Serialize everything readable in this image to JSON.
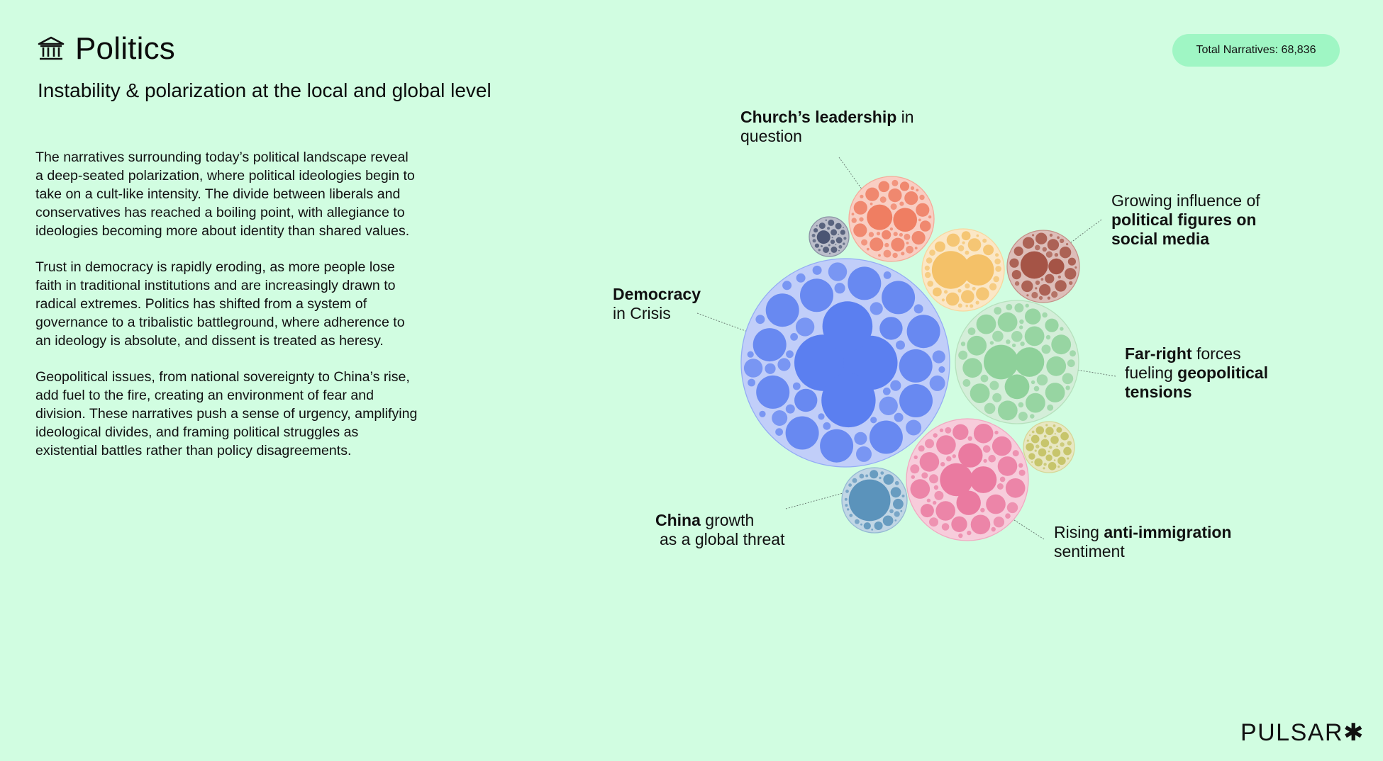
{
  "header": {
    "title": "Politics",
    "icon": "institution-icon"
  },
  "subtitle": "Instability & polarization at the local and global level",
  "badge": "Total Narratives: 68,836",
  "body": {
    "p1": "The narratives surrounding today’s political landscape reveal a deep-seated polarization, where political ideologies begin to take on a cult-like intensity. The divide between liberals and conservatives has reached a boiling point, with allegiance to ideologies becoming more about identity than shared values.",
    "p2": "Trust in democracy is rapidly eroding, as more people lose faith in traditional institutions and are increasingly drawn to radical extremes. Politics has shifted from a system of governance to a tribalistic battleground, where adherence to an ideology is absolute, and dissent is treated as heresy.",
    "p3": "Geopolitical issues, from national sovereignty to China’s rise, add fuel to the fire, creating an environment of fear and division. These narratives push a sense of urgency, amplifying ideological divides, and framing political struggles as existential battles rather than policy disagreements."
  },
  "labels": {
    "church": {
      "bold": "Church’s leadership",
      "rest1": " in",
      "line2": "question"
    },
    "growing": {
      "plain": "Growing influence of",
      "bold2": "political figures on",
      "bold3": "social media"
    },
    "democracy": {
      "bold": "Democracy",
      "line2": "in Crisis"
    },
    "farright": {
      "bold": "Far-right",
      "rest1": " forces",
      "line2a": "fueling ",
      "bold2": "geopolitical",
      "bold3": "tensions"
    },
    "china": {
      "bold": "China",
      "rest1": " growth",
      "line2": "as a global threat"
    },
    "immigration": {
      "plain": "Rising ",
      "bold": "anti-immigration",
      "line2": "sentiment"
    }
  },
  "colors": {
    "background": "#d1fde1",
    "badge": "#9ff6c4",
    "democracy": "#5b7ff0",
    "church": "#ef7e62",
    "social": "#a55446",
    "yellow": "#f4c168",
    "farright": "#8ed19a",
    "immigration": "#ea7aa0",
    "china": "#5b93bb",
    "small_gray": "#4b5573",
    "small_olive": "#c2c05e"
  },
  "logo": "PULSAR✱"
}
